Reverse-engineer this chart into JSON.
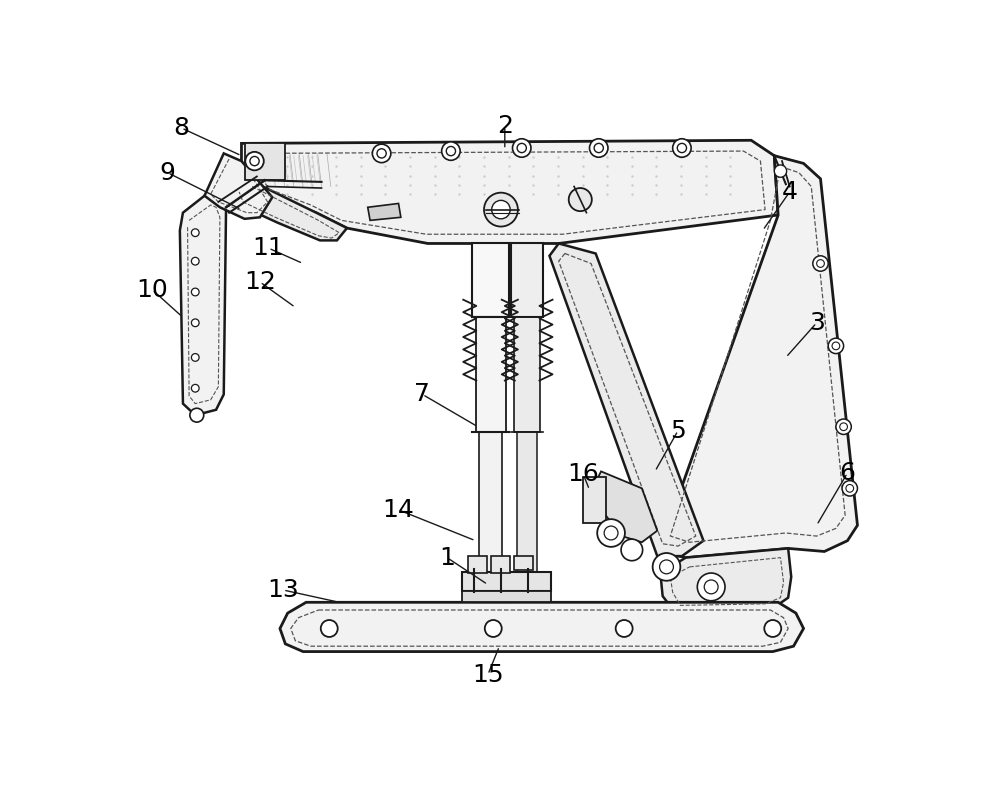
{
  "background_color": "#ffffff",
  "line_color": "#1a1a1a",
  "dashed_color": "#555555",
  "light_fill": "#f2f2f2",
  "label_fontsize": 18,
  "figsize": [
    10.0,
    7.97
  ],
  "dpi": 100,
  "label_defs": [
    [
      "1",
      415,
      600,
      468,
      635
    ],
    [
      "2",
      490,
      40,
      490,
      70
    ],
    [
      "3",
      895,
      295,
      855,
      340
    ],
    [
      "4",
      860,
      125,
      825,
      175
    ],
    [
      "5",
      715,
      435,
      685,
      488
    ],
    [
      "6",
      935,
      490,
      895,
      558
    ],
    [
      "7",
      383,
      388,
      455,
      430
    ],
    [
      "8",
      70,
      42,
      148,
      78
    ],
    [
      "9",
      52,
      100,
      148,
      148
    ],
    [
      "10",
      32,
      252,
      72,
      288
    ],
    [
      "11",
      183,
      198,
      228,
      218
    ],
    [
      "12",
      172,
      242,
      218,
      275
    ],
    [
      "13",
      202,
      642,
      275,
      658
    ],
    [
      "14",
      352,
      538,
      452,
      578
    ],
    [
      "15",
      468,
      752,
      483,
      715
    ],
    [
      "16",
      592,
      492,
      600,
      512
    ]
  ]
}
